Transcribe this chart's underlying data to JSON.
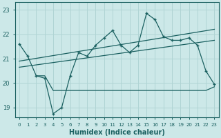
{
  "xlabel": "Humidex (Indice chaleur)",
  "bg_color": "#cce8e8",
  "grid_color": "#b0d4d4",
  "line_color": "#1a6060",
  "xlim": [
    -0.5,
    23.5
  ],
  "ylim": [
    18.6,
    23.3
  ],
  "yticks": [
    19,
    20,
    21,
    22,
    23
  ],
  "xticks": [
    0,
    1,
    2,
    3,
    4,
    5,
    6,
    7,
    8,
    9,
    10,
    11,
    12,
    13,
    14,
    15,
    16,
    17,
    18,
    19,
    20,
    21,
    22,
    23
  ],
  "main_x": [
    0,
    1,
    2,
    3,
    4,
    5,
    6,
    7,
    8,
    9,
    10,
    11,
    12,
    13,
    14,
    15,
    16,
    17,
    18,
    19,
    20,
    21,
    22,
    23
  ],
  "main_y": [
    21.6,
    21.1,
    20.3,
    20.2,
    18.75,
    19.0,
    20.3,
    21.25,
    21.1,
    21.55,
    21.85,
    22.15,
    21.55,
    21.25,
    21.55,
    22.85,
    22.6,
    21.9,
    21.75,
    21.75,
    21.85,
    21.55,
    20.5,
    19.95
  ],
  "trend1_x": [
    0,
    23
  ],
  "trend1_y": [
    20.9,
    22.2
  ],
  "trend2_x": [
    0,
    23
  ],
  "trend2_y": [
    20.65,
    21.75
  ],
  "low_line_x": [
    2,
    3,
    4,
    5,
    6,
    7,
    8,
    9,
    10,
    11,
    12,
    13,
    14,
    15,
    16,
    17,
    18,
    19,
    20,
    21,
    22,
    23
  ],
  "low_line_y": [
    20.3,
    20.3,
    19.7,
    19.7,
    19.7,
    19.7,
    19.7,
    19.7,
    19.7,
    19.7,
    19.7,
    19.7,
    19.7,
    19.7,
    19.7,
    19.7,
    19.7,
    19.7,
    19.7,
    19.7,
    19.7,
    19.85
  ]
}
